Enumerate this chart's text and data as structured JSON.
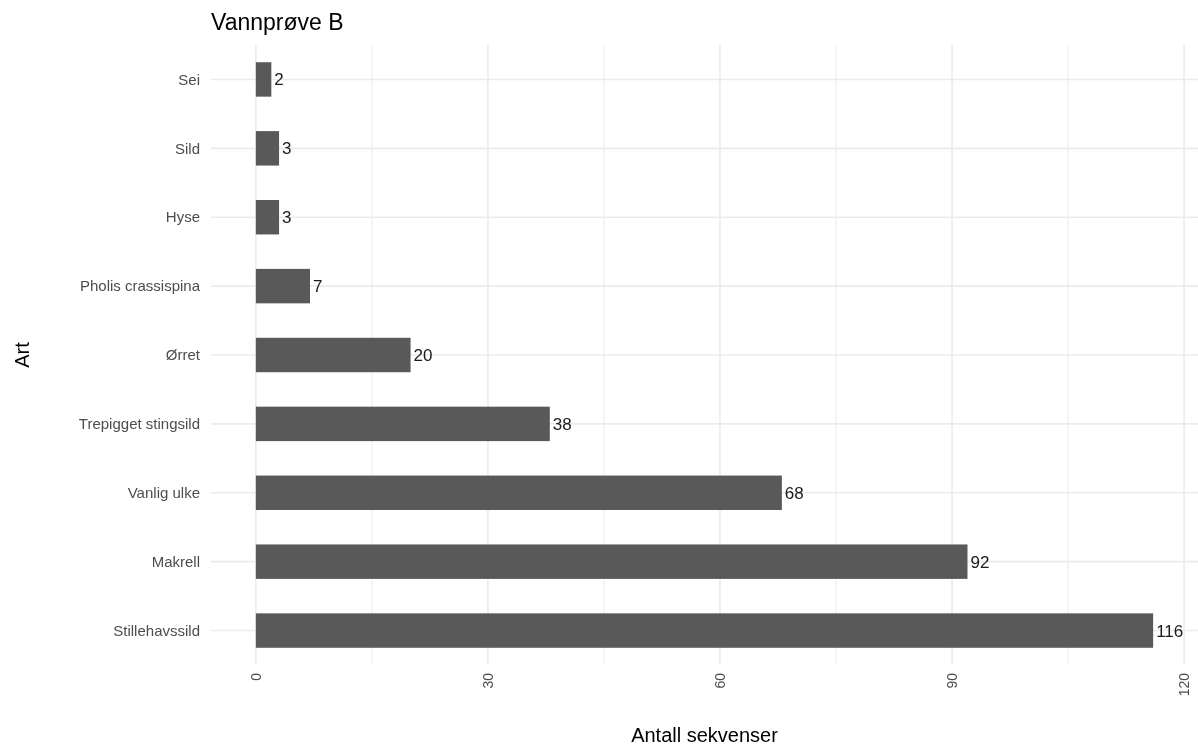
{
  "chart_data": {
    "type": "bar",
    "orientation": "horizontal",
    "title": "Vannprøve B",
    "xlabel": "Antall sekvenser",
    "ylabel": "Art",
    "categories": [
      "Sei",
      "Sild",
      "Hyse",
      "Pholis crassispina",
      "Ørret",
      "Trepigget stingsild",
      "Vanlig ulke",
      "Makrell",
      "Stillehavssild"
    ],
    "values": [
      2,
      3,
      3,
      7,
      20,
      38,
      68,
      92,
      116
    ],
    "color": "#595959",
    "data_labels": true,
    "xlim": [
      -5.8,
      121.8
    ],
    "xticks": [
      0,
      {
        "value": 15,
        "label": null
      },
      30,
      {
        "value": 45,
        "label": null
      },
      60,
      {
        "value": 75,
        "label": null
      },
      90,
      {
        "value": 105,
        "label": null
      },
      120
    ],
    "grid": true
  }
}
